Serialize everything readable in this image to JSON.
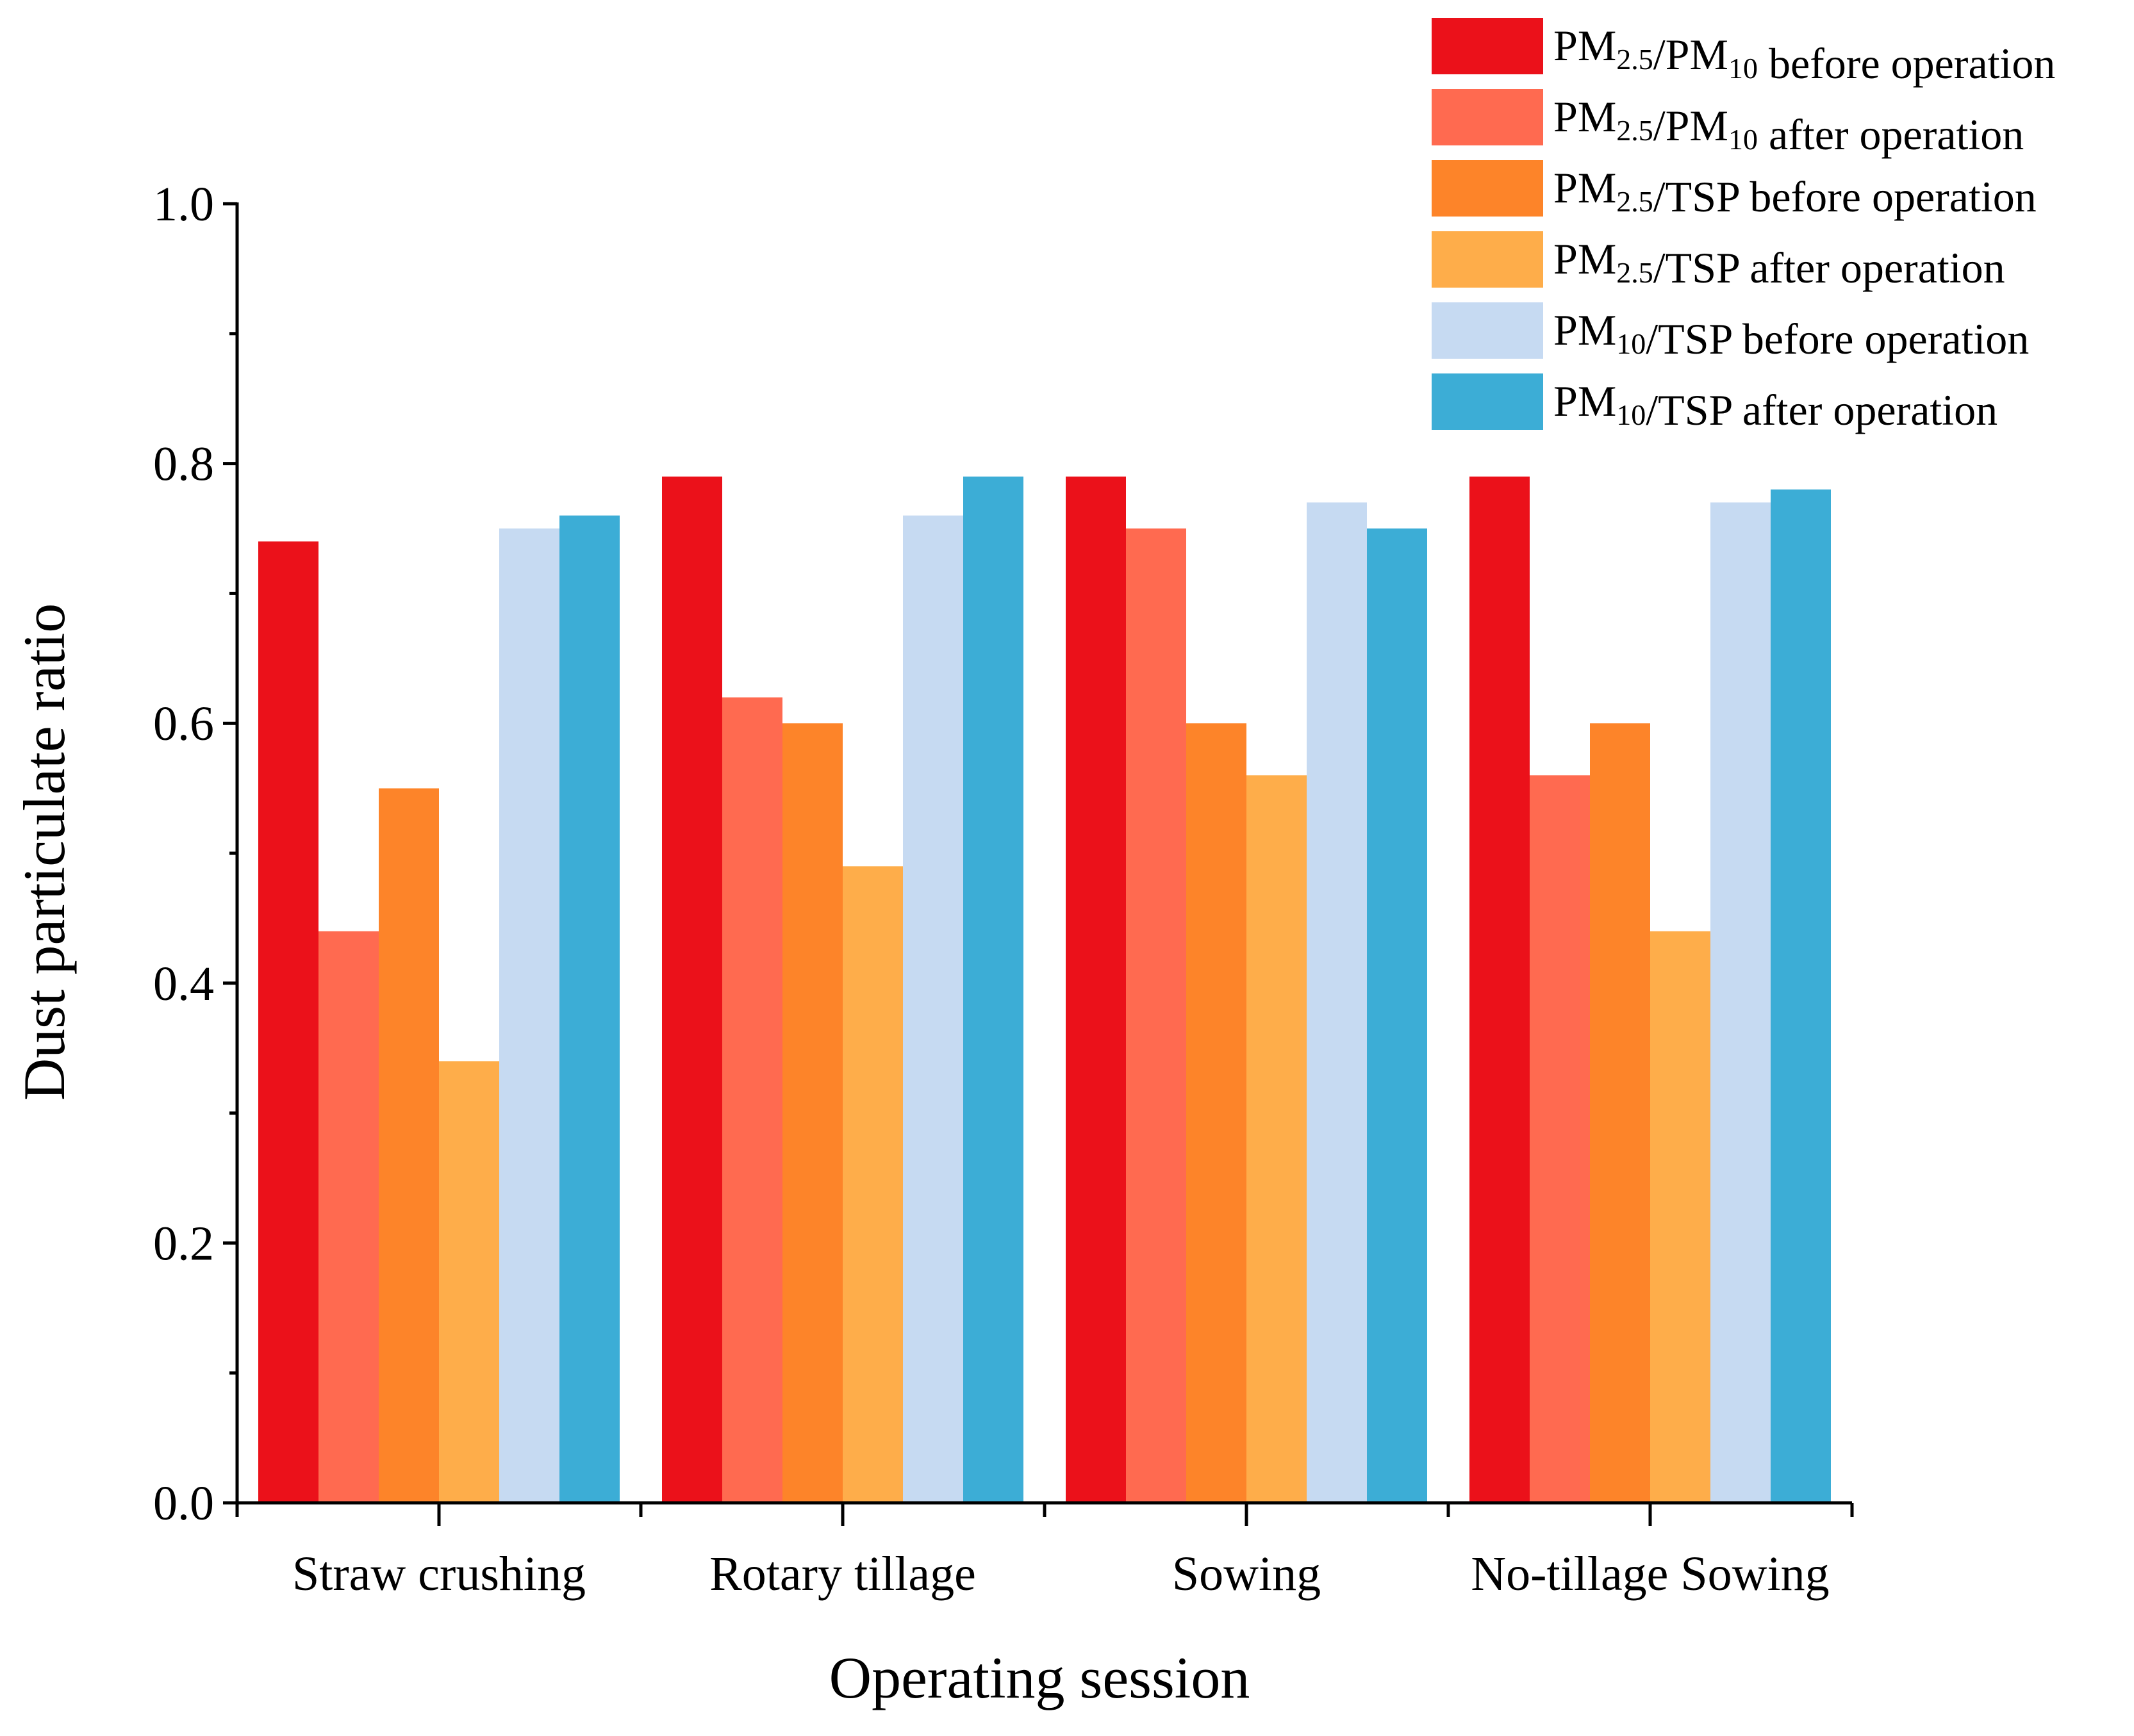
{
  "chart_data": {
    "type": "bar",
    "title": "",
    "xlabel": "Operating session",
    "ylabel": "Dust particulate ratio",
    "ylim": [
      0,
      1.0
    ],
    "yticks": [
      0.0,
      0.2,
      0.4,
      0.6,
      0.8,
      1.0
    ],
    "ytick_labels": [
      "0.0",
      "0.2",
      "0.4",
      "0.6",
      "0.8",
      "1.0"
    ],
    "categories": [
      "Straw crushing",
      "Rotary tillage",
      "Sowing",
      "No-tillage Sowing"
    ],
    "legend_position": "top-right",
    "series": [
      {
        "name": "PM2.5/PM10 before operation",
        "label_parts": [
          [
            "PM",
            ""
          ],
          [
            "2.5",
            "sub"
          ],
          [
            "/PM",
            ""
          ],
          [
            "10",
            "sub"
          ],
          [
            " before operation",
            ""
          ]
        ],
        "color": "#EB111A",
        "values": [
          0.74,
          0.79,
          0.79,
          0.79
        ]
      },
      {
        "name": "PM2.5/PM10 after operation",
        "label_parts": [
          [
            "PM",
            ""
          ],
          [
            "2.5",
            "sub"
          ],
          [
            "/PM",
            ""
          ],
          [
            "10",
            "sub"
          ],
          [
            " after operation",
            ""
          ]
        ],
        "color": "#FF6A50",
        "values": [
          0.44,
          0.62,
          0.75,
          0.56
        ]
      },
      {
        "name": "PM2.5/TSP before operation",
        "label_parts": [
          [
            "PM",
            ""
          ],
          [
            "2.5",
            "sub"
          ],
          [
            "/TSP before operation",
            ""
          ]
        ],
        "color": "#FD8429",
        "values": [
          0.55,
          0.6,
          0.6,
          0.6
        ]
      },
      {
        "name": "PM2.5/TSP after operation",
        "label_parts": [
          [
            "PM",
            ""
          ],
          [
            "2.5",
            "sub"
          ],
          [
            "/TSP after operation",
            ""
          ]
        ],
        "color": "#FEAD4A",
        "values": [
          0.34,
          0.49,
          0.56,
          0.44
        ]
      },
      {
        "name": "PM10/TSP before operation",
        "label_parts": [
          [
            "PM",
            ""
          ],
          [
            "10",
            "sub"
          ],
          [
            "/TSP before operation",
            ""
          ]
        ],
        "color": "#C6DAF2",
        "values": [
          0.75,
          0.76,
          0.77,
          0.77
        ]
      },
      {
        "name": "PM10/TSP after operation",
        "label_parts": [
          [
            "PM",
            ""
          ],
          [
            "10",
            "sub"
          ],
          [
            "/TSP after operation",
            ""
          ]
        ],
        "color": "#3CADD6",
        "values": [
          0.76,
          0.79,
          0.75,
          0.78
        ]
      }
    ]
  }
}
